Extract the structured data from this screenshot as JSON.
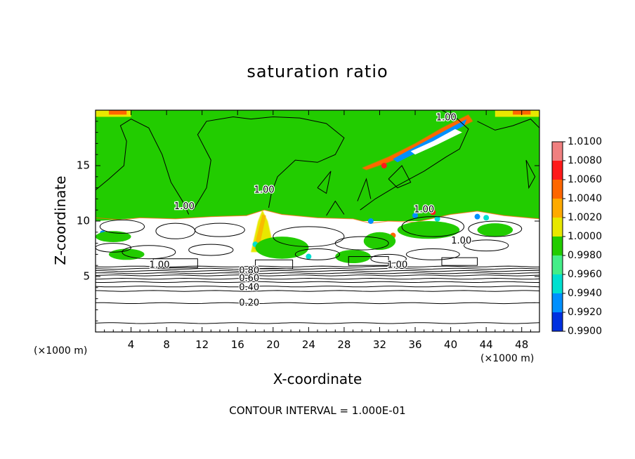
{
  "chart_data": {
    "type": "heatmap",
    "title": "saturation ratio",
    "xlabel": "X-coordinate",
    "ylabel": "Z-coordinate",
    "x_unit": "(×1000 m)",
    "xlim": [
      0,
      50
    ],
    "ylim": [
      0,
      20
    ],
    "x_ticks": [
      4,
      8,
      12,
      16,
      20,
      24,
      28,
      32,
      36,
      40,
      44,
      48
    ],
    "y_ticks": [
      5,
      10,
      15
    ],
    "footer": "CONTOUR INTERVAL = 1.000E-01",
    "colorbar": {
      "levels": [
        "1.0100",
        "1.0080",
        "1.0060",
        "1.0040",
        "1.0020",
        "1.0000",
        "0.9980",
        "0.9960",
        "0.9940",
        "0.9920",
        "0.9900"
      ],
      "colors": [
        "#f08080",
        "#ff1a1a",
        "#ff6600",
        "#ffaa00",
        "#e8e800",
        "#22cc00",
        "#44ee88",
        "#00e0d0",
        "#0090ff",
        "#0030e0",
        "#500090"
      ]
    },
    "contour_labels": [
      {
        "text": "1.00",
        "x": 39.5,
        "y": 19.3
      },
      {
        "text": "1.00",
        "x": 10.0,
        "y": 11.3
      },
      {
        "text": "1.00",
        "x": 19.0,
        "y": 12.8
      },
      {
        "text": "1.00",
        "x": 37.0,
        "y": 11.0
      },
      {
        "text": "1.00",
        "x": 41.2,
        "y": 8.2
      },
      {
        "text": "1.00",
        "x": 7.2,
        "y": 6.0
      },
      {
        "text": "1.00",
        "x": 34.0,
        "y": 6.0
      },
      {
        "text": "0.80",
        "x": 17.3,
        "y": 5.5
      },
      {
        "text": "0.60",
        "x": 17.3,
        "y": 4.8
      },
      {
        "text": "0.40",
        "x": 17.3,
        "y": 4.0
      },
      {
        "text": "0.20",
        "x": 17.3,
        "y": 2.6
      }
    ],
    "stable_contour_levels_y": [
      0.8,
      2.6,
      3.7,
      4.1,
      4.5,
      4.8,
      5.1,
      5.3,
      5.5,
      5.7,
      5.9
    ],
    "fill_regions": {
      "subsaturated_below_cloud_white": {
        "y_top": 10.0
      },
      "near_saturation_green_above": {
        "y_from": 10.0,
        "y_to": 20.0
      }
    }
  }
}
